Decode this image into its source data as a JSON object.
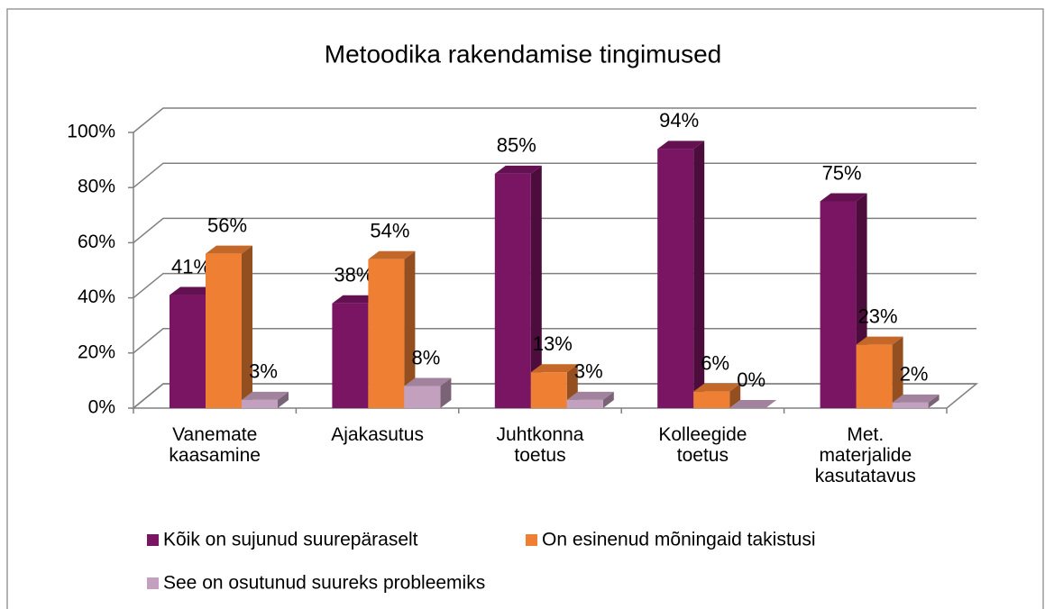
{
  "chart_data": {
    "type": "bar3d",
    "title": "Metoodika rakendamise tingimused",
    "categories": [
      "Vanemate kaasamine",
      "Ajakasutus",
      "Juhtkonna toetus",
      "Kolleegide toetus",
      "Met. materjalide kasutatavus"
    ],
    "series": [
      {
        "name": "Kõik on sujunud suurepäraselt",
        "color": "#7a1563",
        "values": [
          41,
          38,
          85,
          94,
          75
        ],
        "value_labels": [
          "41%",
          "38%",
          "85%",
          "94%",
          "75%"
        ]
      },
      {
        "name": "On esinenud mõningaid takistusi",
        "color": "#ef7f33",
        "values": [
          56,
          54,
          13,
          6,
          23
        ],
        "value_labels": [
          "56%",
          "54%",
          "13%",
          "6%",
          "23%"
        ]
      },
      {
        "name": "See on osutunud suureks probleemiks",
        "color": "#c4a0bf",
        "values": [
          3,
          8,
          3,
          0,
          2
        ],
        "value_labels": [
          "3%",
          "8%",
          "3%",
          "0%",
          "2%"
        ]
      }
    ],
    "ylim": [
      0,
      100
    ],
    "yticks": [
      {
        "value": 0,
        "label": "0%"
      },
      {
        "value": 20,
        "label": "20%"
      },
      {
        "value": 40,
        "label": "40%"
      },
      {
        "value": 60,
        "label": "60%"
      },
      {
        "value": 80,
        "label": "80%"
      },
      {
        "value": 100,
        "label": "100%"
      }
    ],
    "grid": true,
    "legend": "bottom"
  }
}
